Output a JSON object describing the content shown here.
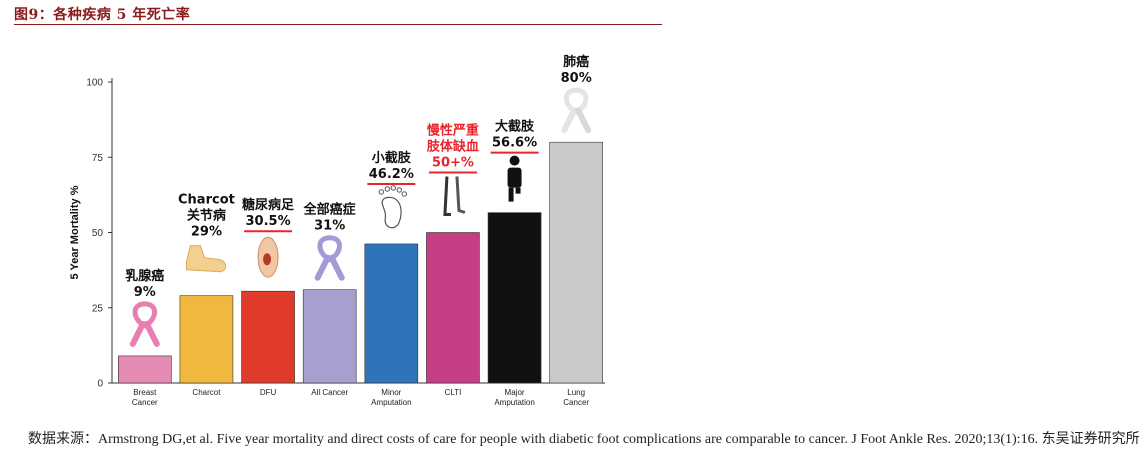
{
  "header": {
    "figure_title": "图9：各种疾病 5 年死亡率"
  },
  "source": {
    "text": "数据来源：Armstrong DG,et al. Five year mortality and direct costs of care for people with diabetic foot complications are comparable to cancer. J Foot Ankle Res. 2020;13(1):16. 东吴证券研究所"
  },
  "chart_data": {
    "type": "bar",
    "ylabel": "5 Year Mortality %",
    "ylim": [
      0,
      100
    ],
    "yticks": [
      0,
      25,
      50,
      75,
      100
    ],
    "categories": [
      "Breast\nCancer",
      "Charcot",
      "DFU",
      "All Cancer",
      "Minor\nAmputation",
      "CLTI",
      "Major\nAmputation",
      "Lung\nCancer"
    ],
    "values": [
      9,
      29,
      30.5,
      31,
      46.2,
      50,
      56.6,
      80
    ],
    "colors": [
      "#e48bb4",
      "#f1b840",
      "#e03a2a",
      "#a79fcf",
      "#2f74b8",
      "#c43f85",
      "#111111",
      "#c9c9c9"
    ],
    "annotations": [
      {
        "lines": [
          "乳腺癌",
          "9%"
        ],
        "color": "#111111",
        "underline": false,
        "icon": "pink-ribbon-icon"
      },
      {
        "lines": [
          "Charcot",
          "关节病",
          "29%"
        ],
        "color": "#111111",
        "underline": false,
        "icon": "foot-icon"
      },
      {
        "lines": [
          "糖尿病足",
          "30.5%"
        ],
        "color": "#111111",
        "underline": true,
        "icon": "wounded-foot-icon"
      },
      {
        "lines": [
          "全部癌症",
          "31%"
        ],
        "color": "#111111",
        "underline": false,
        "icon": "lavender-ribbon-icon"
      },
      {
        "lines": [
          "小截肢",
          "46.2%"
        ],
        "color": "#111111",
        "underline": true,
        "icon": "footprint-icon"
      },
      {
        "lines": [
          "慢性严重",
          "肢体缺血",
          "50+%"
        ],
        "color": "#e8252b",
        "underline": true,
        "icon": "legs-icon"
      },
      {
        "lines": [
          "大截肢",
          "56.6%"
        ],
        "color": "#111111",
        "underline": true,
        "icon": "amputee-figure-icon"
      },
      {
        "lines": [
          "肺癌",
          "80%"
        ],
        "color": "#111111",
        "underline": false,
        "icon": "white-ribbon-icon"
      }
    ],
    "underline_color": "#e8252b",
    "grid": false
  }
}
